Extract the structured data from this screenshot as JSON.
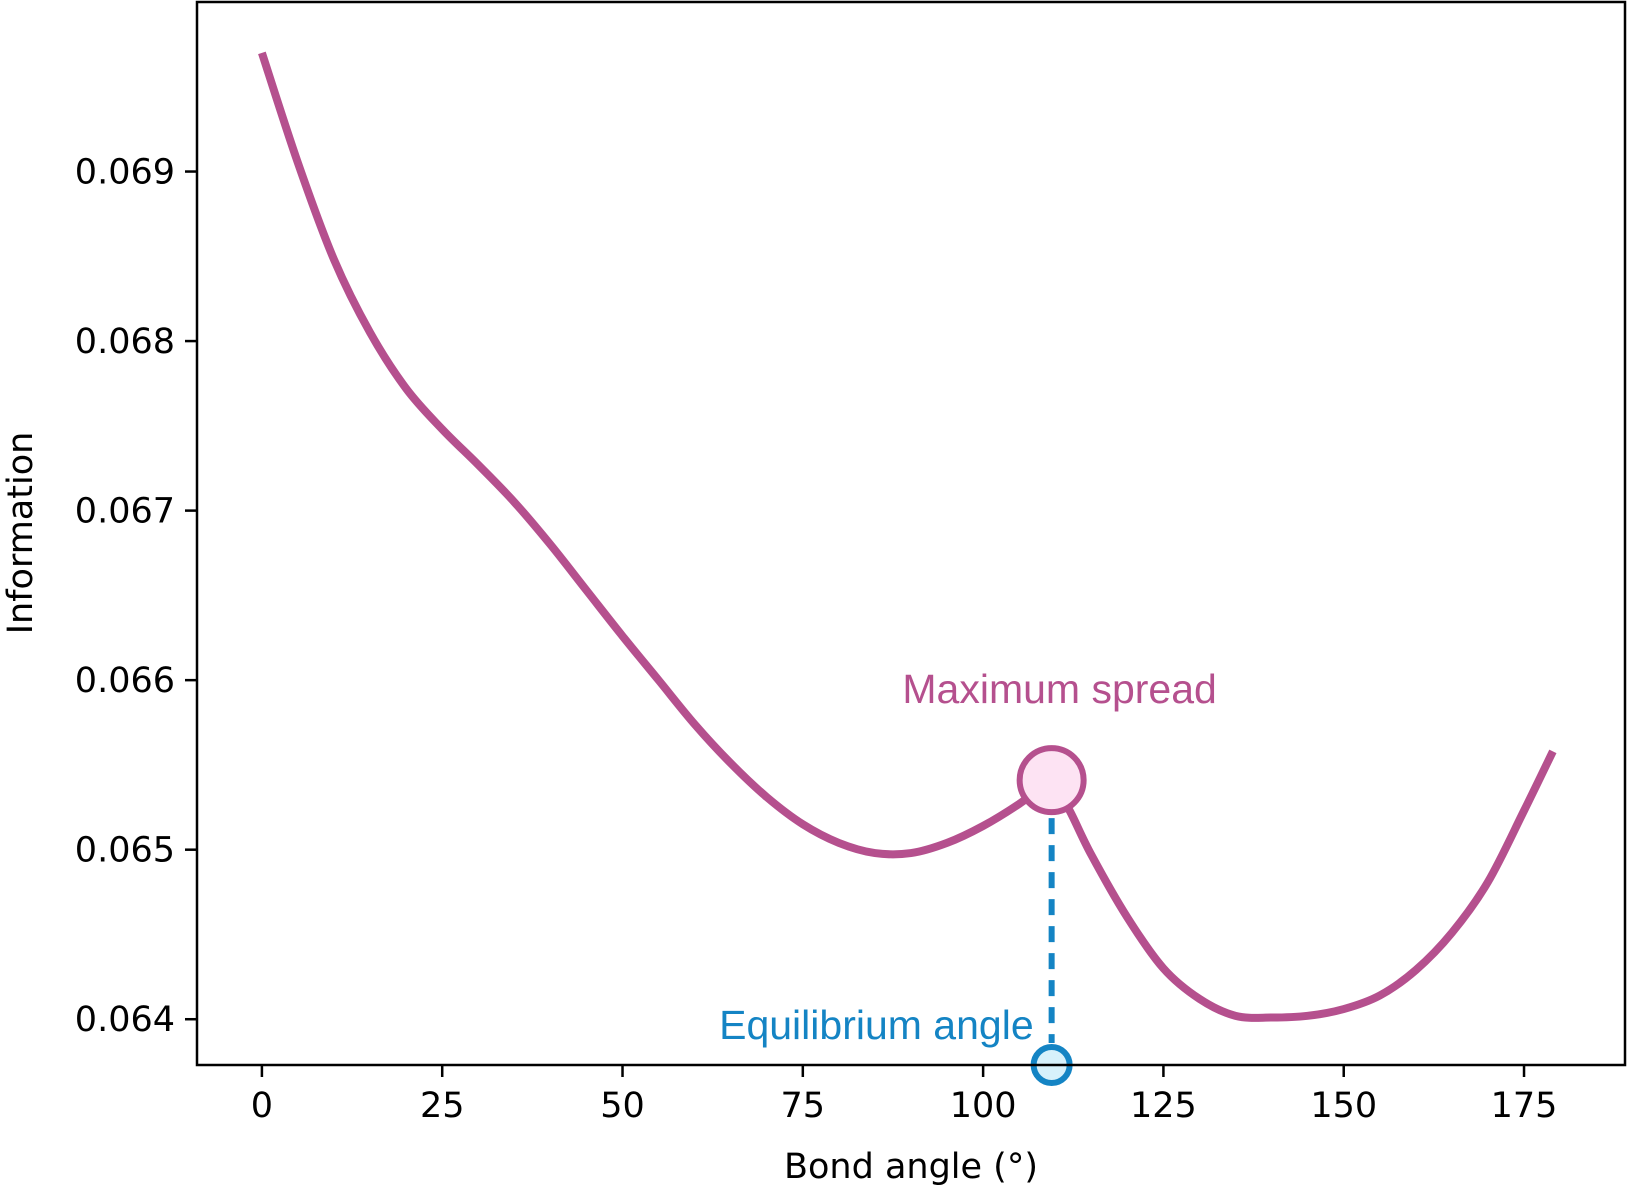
{
  "chart_data": {
    "type": "line",
    "title": "",
    "xlabel": "Bond angle (°)",
    "ylabel": "Information",
    "xlim": [
      -9,
      189
    ],
    "ylim": [
      0.06373,
      0.07
    ],
    "x_ticks": [
      0,
      25,
      50,
      75,
      100,
      125,
      150,
      175
    ],
    "x_tick_labels": [
      "0",
      "25",
      "50",
      "75",
      "100",
      "125",
      "150",
      "175"
    ],
    "y_ticks": [
      0.064,
      0.065,
      0.066,
      0.067,
      0.068,
      0.069
    ],
    "y_tick_labels": [
      "0.064",
      "0.065",
      "0.066",
      "0.067",
      "0.068",
      "0.069"
    ],
    "grid": false,
    "series": [
      {
        "color": "#b5508e",
        "x": [
          0,
          5,
          10,
          15,
          20,
          25,
          30,
          35,
          40,
          45,
          50,
          55,
          60,
          65,
          70,
          75,
          80,
          85,
          90,
          95,
          100,
          105,
          109.5,
          112,
          115,
          120,
          125,
          130,
          135,
          140,
          145,
          150,
          155,
          160,
          165,
          170,
          175,
          179
        ],
        "y": [
          0.0697,
          0.06905,
          0.06848,
          0.06805,
          0.06772,
          0.06748,
          0.06727,
          0.06705,
          0.0668,
          0.06653,
          0.06626,
          0.066,
          0.06574,
          0.06551,
          0.06531,
          0.06515,
          0.06504,
          0.06498,
          0.06498,
          0.06504,
          0.06514,
          0.06527,
          0.06541,
          0.06523,
          0.06497,
          0.0646,
          0.0643,
          0.06412,
          0.06402,
          0.06401,
          0.06402,
          0.06406,
          0.06414,
          0.06429,
          0.06451,
          0.06481,
          0.06523,
          0.06558
        ]
      }
    ],
    "annotations": [
      {
        "text": "Maximum spread",
        "color": "#b5508e",
        "point_x": 109.5,
        "point_y": 0.06541
      },
      {
        "text": "Equilibrium angle",
        "color": "#1484c4",
        "point_x": 109.5,
        "point_y": 0.06373
      }
    ]
  }
}
